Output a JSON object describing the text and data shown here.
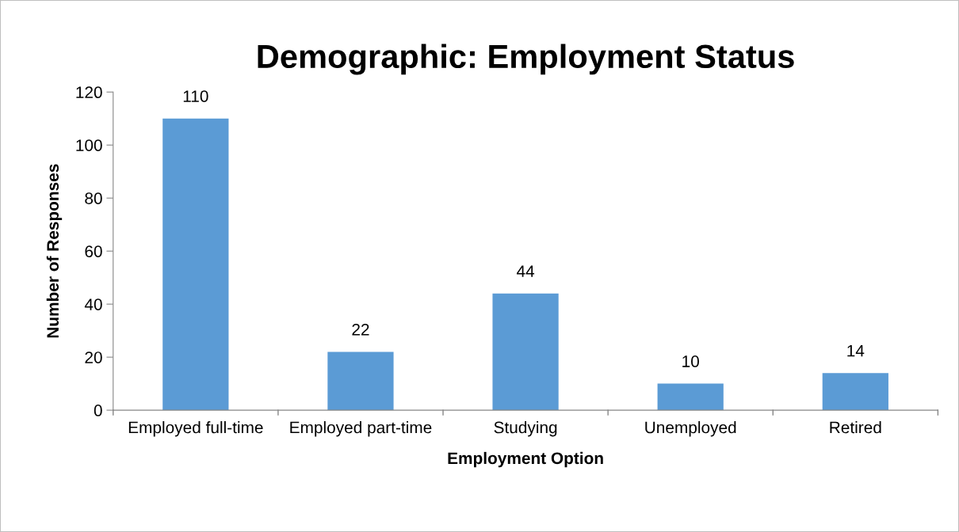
{
  "chart_data": {
    "type": "bar",
    "title": "Demographic: Employment Status",
    "xlabel": "Employment Option",
    "ylabel": "Number of Responses",
    "categories": [
      "Employed full-time",
      "Employed part-time",
      "Studying",
      "Unemployed",
      "Retired"
    ],
    "values": [
      110,
      22,
      44,
      10,
      14
    ],
    "color": "#5b9bd5",
    "ylim": [
      0,
      120
    ],
    "yticks": [
      0,
      20,
      40,
      60,
      80,
      100,
      120
    ],
    "grid": false,
    "data_labels": true
  }
}
